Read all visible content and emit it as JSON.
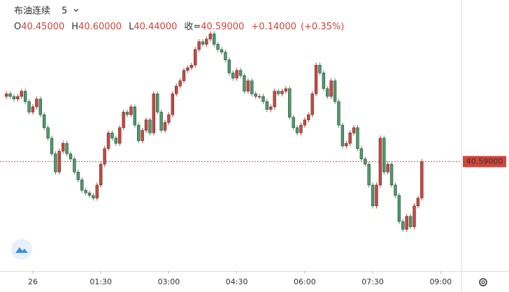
{
  "chart_data": {
    "type": "candlestick",
    "title": "布油连续",
    "interval": "5",
    "ohlc_legend": [
      {
        "key": "O",
        "value": "40.45000"
      },
      {
        "key": "H",
        "value": "40.60000"
      },
      {
        "key": "L",
        "value": "40.44000"
      },
      {
        "key": "收=",
        "value": "40.59000"
      }
    ],
    "change": "+0.14000",
    "change_pct": "(+0.35%)",
    "up_color": "#d0453a",
    "down_color": "#4c9a6b",
    "x": [
      -7,
      -6,
      -5,
      -4,
      -3,
      -2,
      -1,
      0,
      1,
      2,
      3,
      4,
      5,
      6,
      7,
      8,
      9,
      10,
      11,
      12,
      13,
      14,
      15,
      16,
      17,
      18,
      19,
      20,
      21,
      22,
      23,
      24,
      25,
      26,
      27,
      28,
      29,
      30,
      31,
      32,
      33,
      34,
      35,
      36,
      37,
      38,
      39,
      40,
      41,
      42,
      43,
      44,
      45,
      46,
      47,
      48,
      49,
      50,
      51,
      52,
      53,
      54,
      55,
      56,
      57,
      58,
      59,
      60,
      61,
      62,
      63,
      64,
      65,
      66,
      67,
      68,
      69,
      70,
      71,
      72,
      73,
      74,
      75,
      76,
      77,
      78,
      79,
      80,
      81,
      82,
      83,
      84,
      85,
      86,
      87,
      88,
      89,
      90,
      91,
      92,
      93,
      94,
      95,
      96,
      97,
      98,
      99,
      100,
      101,
      102,
      103
    ],
    "open": [
      40.84,
      40.85,
      40.84,
      40.83,
      40.84,
      40.86,
      40.82,
      40.78,
      40.8,
      40.83,
      40.77,
      40.72,
      40.68,
      40.62,
      40.55,
      40.63,
      40.66,
      40.62,
      40.6,
      40.55,
      40.52,
      40.48,
      40.47,
      40.46,
      40.45,
      40.5,
      40.58,
      40.64,
      40.7,
      40.68,
      40.66,
      40.72,
      40.78,
      40.77,
      40.8,
      40.73,
      40.67,
      40.71,
      40.75,
      40.7,
      40.85,
      40.78,
      40.71,
      40.74,
      40.77,
      40.85,
      40.88,
      40.9,
      40.94,
      40.95,
      40.96,
      41.02,
      41.05,
      41.04,
      41.06,
      41.08,
      41.04,
      41.02,
      41.01,
      40.98,
      40.93,
      40.91,
      40.94,
      40.92,
      40.86,
      40.9,
      40.85,
      40.84,
      40.84,
      40.82,
      40.79,
      40.8,
      40.86,
      40.85,
      40.86,
      40.87,
      40.76,
      40.72,
      40.7,
      40.73,
      40.75,
      40.77,
      40.85,
      40.96,
      40.93,
      40.87,
      40.84,
      40.9,
      40.82,
      40.73,
      40.65,
      40.66,
      40.7,
      40.72,
      40.64,
      40.6,
      40.58,
      40.5,
      40.42,
      40.5,
      40.68,
      40.55,
      40.58,
      40.5,
      40.46,
      40.36,
      40.33,
      40.38,
      40.34,
      40.42,
      40.45
    ],
    "high": [
      40.86,
      40.86,
      40.85,
      40.85,
      40.87,
      40.87,
      40.83,
      40.81,
      40.84,
      40.84,
      40.78,
      40.73,
      40.69,
      40.63,
      40.64,
      40.67,
      40.67,
      40.63,
      40.61,
      40.56,
      40.53,
      40.49,
      40.48,
      40.47,
      40.51,
      40.59,
      40.65,
      40.71,
      40.71,
      40.69,
      40.73,
      40.79,
      40.79,
      40.81,
      40.81,
      40.74,
      40.72,
      40.76,
      40.76,
      40.86,
      40.86,
      40.79,
      40.75,
      40.78,
      40.86,
      40.89,
      40.91,
      40.95,
      40.96,
      40.97,
      41.03,
      41.06,
      41.06,
      41.07,
      41.09,
      41.09,
      41.05,
      41.03,
      41.02,
      40.99,
      40.94,
      40.95,
      40.95,
      40.93,
      40.91,
      40.91,
      40.86,
      40.85,
      40.85,
      40.83,
      40.81,
      40.87,
      40.87,
      40.87,
      40.88,
      40.88,
      40.77,
      40.73,
      40.74,
      40.76,
      40.78,
      40.86,
      40.97,
      40.97,
      40.94,
      40.88,
      40.91,
      40.91,
      40.83,
      40.74,
      40.67,
      40.71,
      40.73,
      40.73,
      40.65,
      40.61,
      40.59,
      40.51,
      40.51,
      40.69,
      40.69,
      40.59,
      40.59,
      40.51,
      40.47,
      40.37,
      40.39,
      40.39,
      40.43,
      40.46,
      40.6
    ],
    "low": [
      40.83,
      40.83,
      40.82,
      40.82,
      40.83,
      40.81,
      40.77,
      40.77,
      40.79,
      40.76,
      40.71,
      40.67,
      40.61,
      40.54,
      40.54,
      40.62,
      40.61,
      40.59,
      40.54,
      40.51,
      40.47,
      40.46,
      40.45,
      40.44,
      40.44,
      40.49,
      40.57,
      40.63,
      40.67,
      40.65,
      40.65,
      40.71,
      40.76,
      40.76,
      40.72,
      40.66,
      40.66,
      40.7,
      40.69,
      40.69,
      40.77,
      40.7,
      40.7,
      40.73,
      40.76,
      40.84,
      40.87,
      40.89,
      40.93,
      40.94,
      40.95,
      41.01,
      41.03,
      41.03,
      41.05,
      41.03,
      41.01,
      41.0,
      40.97,
      40.92,
      40.9,
      40.9,
      40.91,
      40.85,
      40.85,
      40.84,
      40.83,
      40.83,
      40.81,
      40.78,
      40.78,
      40.79,
      40.84,
      40.84,
      40.85,
      40.75,
      40.71,
      40.69,
      40.69,
      40.72,
      40.74,
      40.76,
      40.84,
      40.92,
      40.86,
      40.83,
      40.83,
      40.81,
      40.72,
      40.64,
      40.64,
      40.65,
      40.69,
      40.63,
      40.59,
      40.57,
      40.49,
      40.41,
      40.41,
      40.49,
      40.54,
      40.54,
      40.49,
      40.45,
      40.35,
      40.32,
      40.32,
      40.33,
      40.33,
      40.41,
      40.44
    ],
    "close": [
      40.85,
      40.84,
      40.83,
      40.84,
      40.86,
      40.82,
      40.78,
      40.8,
      40.83,
      40.77,
      40.72,
      40.68,
      40.62,
      40.55,
      40.63,
      40.66,
      40.62,
      40.6,
      40.55,
      40.52,
      40.48,
      40.47,
      40.46,
      40.45,
      40.5,
      40.58,
      40.64,
      40.7,
      40.68,
      40.66,
      40.72,
      40.78,
      40.77,
      40.8,
      40.73,
      40.67,
      40.71,
      40.75,
      40.7,
      40.85,
      40.78,
      40.71,
      40.74,
      40.77,
      40.85,
      40.88,
      40.9,
      40.94,
      40.95,
      40.96,
      41.02,
      41.05,
      41.04,
      41.06,
      41.08,
      41.04,
      41.02,
      41.01,
      40.98,
      40.93,
      40.91,
      40.94,
      40.92,
      40.86,
      40.9,
      40.85,
      40.84,
      40.84,
      40.82,
      40.79,
      40.8,
      40.86,
      40.85,
      40.86,
      40.87,
      40.76,
      40.72,
      40.7,
      40.73,
      40.75,
      40.77,
      40.85,
      40.96,
      40.93,
      40.87,
      40.84,
      40.9,
      40.82,
      40.73,
      40.65,
      40.66,
      40.7,
      40.72,
      40.64,
      40.6,
      40.58,
      40.5,
      40.42,
      40.5,
      40.68,
      40.55,
      40.58,
      40.5,
      40.46,
      40.36,
      40.33,
      40.38,
      40.34,
      40.42,
      40.45,
      40.59
    ],
    "xlim": [
      -8.7,
      113.5
    ],
    "xticks": [
      {
        "value": 0,
        "label": "26"
      },
      {
        "value": 18,
        "label": "01:30"
      },
      {
        "value": 36,
        "label": "03:00"
      },
      {
        "value": 54,
        "label": "04:30"
      },
      {
        "value": 72,
        "label": "06:00"
      },
      {
        "value": 90,
        "label": "07:30"
      },
      {
        "value": 108,
        "label": "09:00"
      }
    ],
    "ylim": [
      40.17,
      41.21
    ],
    "last_price": {
      "value": 40.59,
      "label": "40.59000"
    },
    "last_price_color": "#d0453a"
  }
}
